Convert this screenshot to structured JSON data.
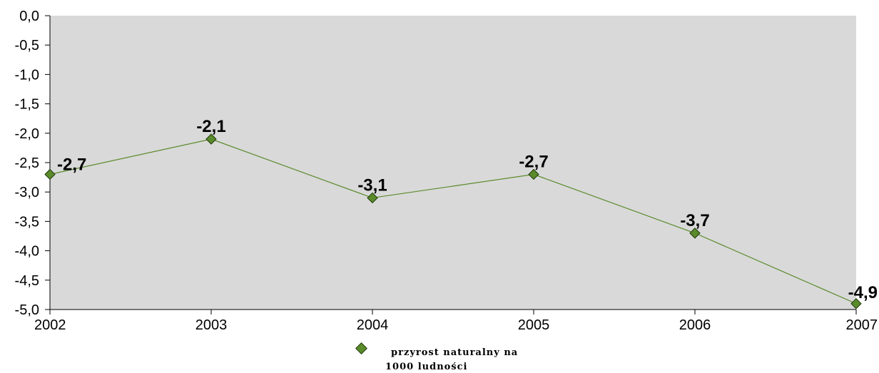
{
  "chart_data": {
    "type": "line",
    "x": [
      "2002",
      "2003",
      "2004",
      "2005",
      "2006",
      "2007"
    ],
    "series": [
      {
        "name": "przyrost naturalny na 1000 ludności",
        "values": [
          -2.7,
          -2.1,
          -3.1,
          -2.7,
          -3.7,
          -4.9
        ],
        "data_labels": [
          "-2,7",
          "-2,1",
          "-3,1",
          "-2,7",
          "-3,7",
          "-4,9"
        ],
        "color": "#5a8a2a",
        "marker": "diamond"
      }
    ],
    "y_ticks": [
      0,
      -0.5,
      -1,
      -1.5,
      -2,
      -2.5,
      -3,
      -3.5,
      -4,
      -4.5,
      -5
    ],
    "y_tick_labels": [
      "0,0",
      "-0,5",
      "-1,0",
      "-1,5",
      "-2,0",
      "-2,5",
      "-3,0",
      "-3,5",
      "-4,0",
      "-4,5",
      "-5,0"
    ],
    "ylim": [
      -5,
      0
    ],
    "title": "",
    "xlabel": "",
    "ylabel": "",
    "grid": false,
    "legend_position": "bottom",
    "legend_lines": [
      "przyrost naturalny na",
      "1000 ludności"
    ],
    "plot_background": "#d9d9d9"
  }
}
